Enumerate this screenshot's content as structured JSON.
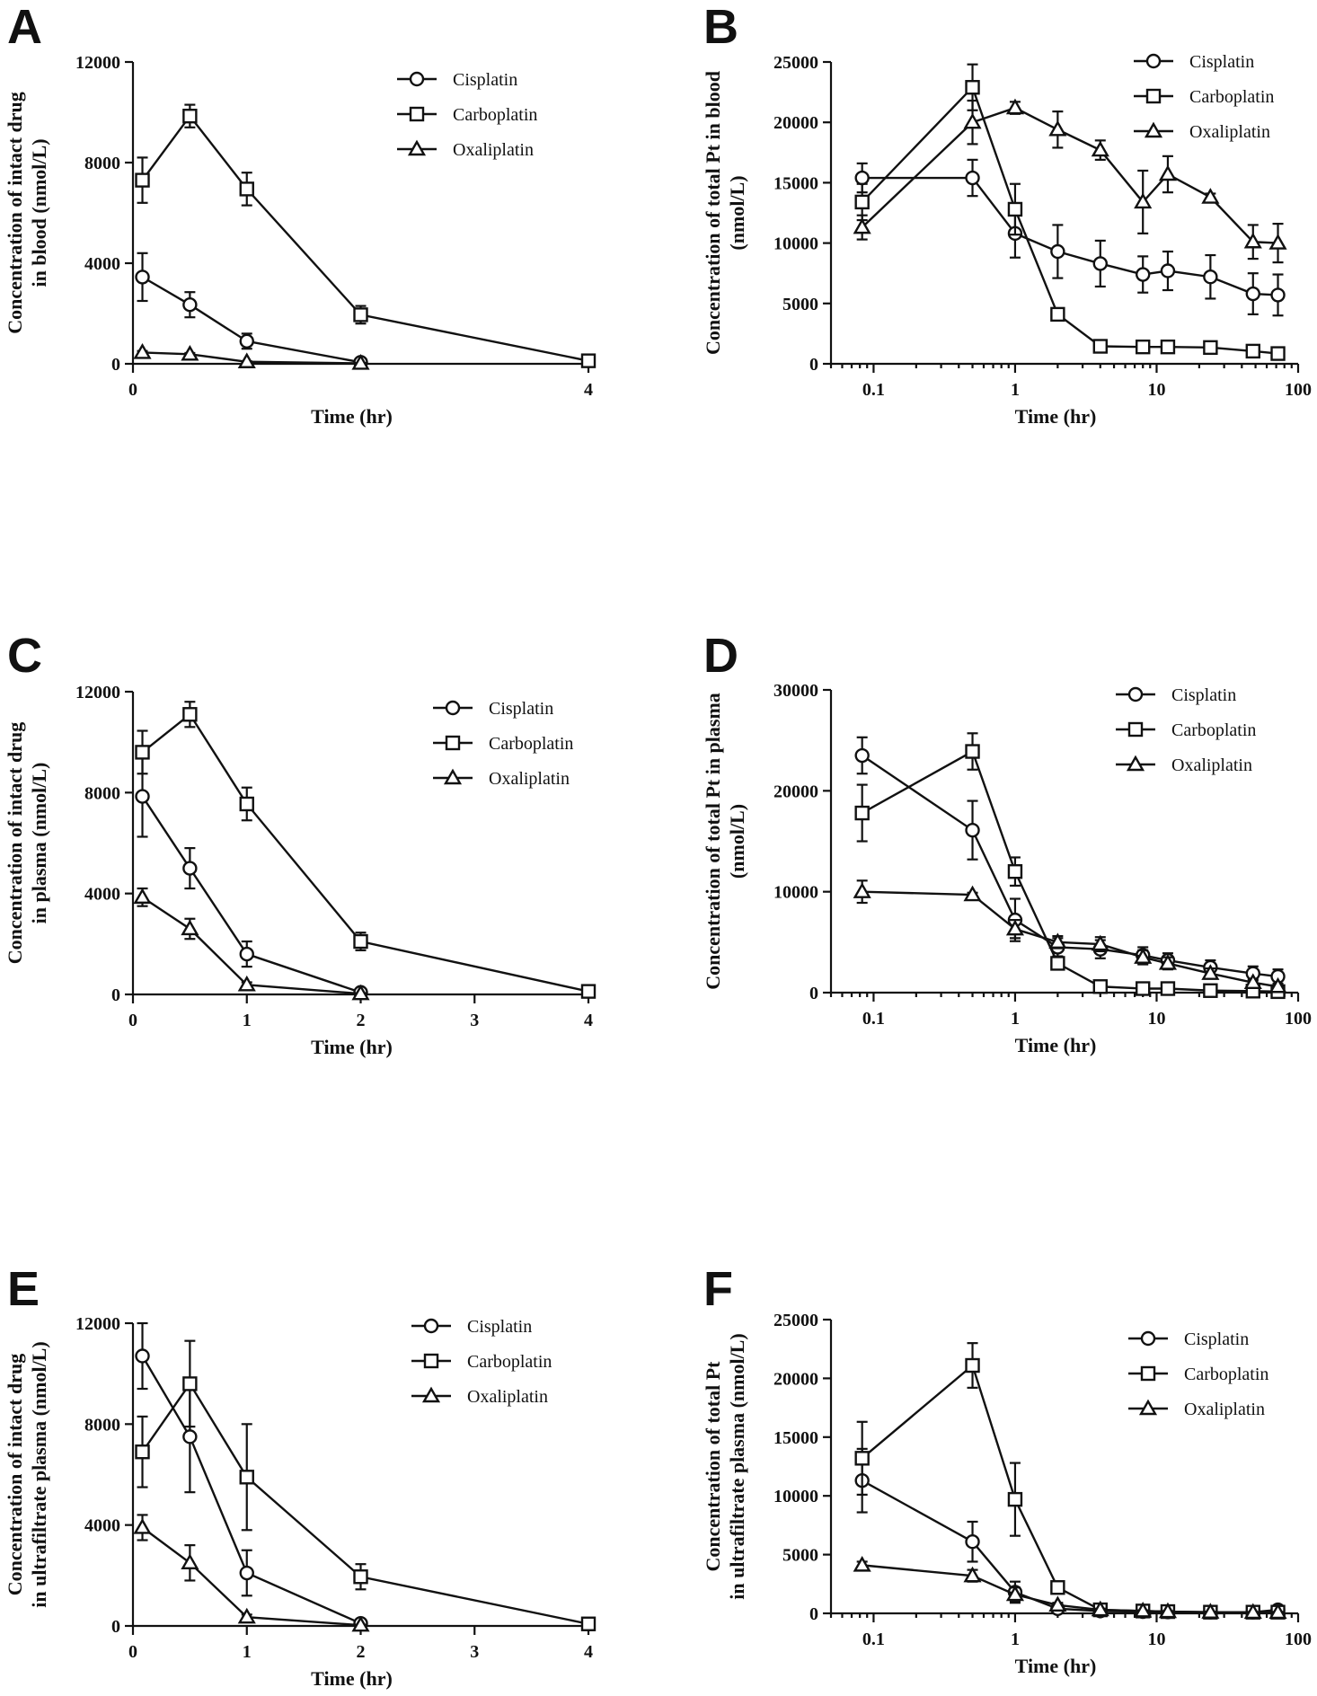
{
  "chart_data": [
    {
      "panel": "A",
      "type": "line",
      "xscale": "linear",
      "xlabel": "Time (hr)",
      "ylabel": [
        "Concentration of intact drug",
        "in blood (nmol/L)"
      ],
      "xlim": [
        0,
        4
      ],
      "ylim": [
        0,
        12000
      ],
      "xticks": [
        0,
        4
      ],
      "yticks": [
        0,
        4000,
        8000,
        12000
      ],
      "legend_position": "top-right",
      "series": [
        {
          "name": "Cisplatin",
          "marker": "circle",
          "x": [
            0.083,
            0.5,
            1,
            2
          ],
          "y": [
            3450,
            2350,
            900,
            60
          ],
          "err": [
            950,
            500,
            300,
            50
          ]
        },
        {
          "name": "Carboplatin",
          "marker": "square",
          "x": [
            0.083,
            0.5,
            1,
            2,
            4
          ],
          "y": [
            7300,
            9850,
            6950,
            1950,
            120
          ],
          "err": [
            900,
            450,
            650,
            350,
            80
          ]
        },
        {
          "name": "Oxaliplatin",
          "marker": "triangle",
          "x": [
            0.083,
            0.5,
            1,
            2
          ],
          "y": [
            450,
            380,
            80,
            20
          ],
          "err": [
            60,
            50,
            20,
            10
          ]
        }
      ]
    },
    {
      "panel": "B",
      "type": "line",
      "xscale": "log",
      "xlabel": "Time (hr)",
      "ylabel": [
        "Concentration of total Pt in blood",
        "(nmol/L)"
      ],
      "xlim": [
        0.05,
        100
      ],
      "ylim": [
        0,
        25000
      ],
      "xticks": [
        0.1,
        1,
        10,
        100
      ],
      "yticks": [
        0,
        5000,
        10000,
        15000,
        20000,
        25000
      ],
      "legend_position": "top-right",
      "series": [
        {
          "name": "Cisplatin",
          "marker": "circle",
          "x": [
            0.083,
            0.5,
            1,
            2,
            4,
            8,
            12,
            24,
            48,
            72
          ],
          "y": [
            15400,
            15400,
            10800,
            9300,
            8300,
            7400,
            7700,
            7200,
            5800,
            5700
          ],
          "err": [
            1200,
            1500,
            2000,
            2200,
            1900,
            1500,
            1600,
            1800,
            1700,
            1700
          ]
        },
        {
          "name": "Carboplatin",
          "marker": "square",
          "x": [
            0.083,
            0.5,
            1,
            2,
            4,
            8,
            12,
            24,
            48,
            72
          ],
          "y": [
            13400,
            22900,
            12800,
            4100,
            1450,
            1400,
            1400,
            1350,
            1050,
            850
          ],
          "err": [
            1500,
            1900,
            2100,
            500,
            150,
            120,
            120,
            120,
            100,
            100
          ]
        },
        {
          "name": "Oxaliplatin",
          "marker": "triangle",
          "x": [
            0.083,
            0.5,
            1,
            2,
            4,
            8,
            12,
            24,
            48,
            72
          ],
          "y": [
            11300,
            20000,
            21200,
            19400,
            17700,
            13400,
            15700,
            13800,
            10100,
            10000
          ],
          "err": [
            1000,
            1800,
            500,
            1500,
            800,
            2600,
            1500,
            300,
            1400,
            1600
          ]
        }
      ]
    },
    {
      "panel": "C",
      "type": "line",
      "xscale": "linear",
      "xlabel": "Time (hr)",
      "ylabel": [
        "Concentration of intact drug",
        "in plasma (nmol/L)"
      ],
      "xlim": [
        0,
        4
      ],
      "ylim": [
        0,
        12000
      ],
      "xticks": [
        0,
        1,
        2,
        3,
        4
      ],
      "yticks": [
        0,
        4000,
        8000,
        12000
      ],
      "legend_position": "top-right",
      "series": [
        {
          "name": "Cisplatin",
          "marker": "circle",
          "x": [
            0.083,
            0.5,
            1,
            2
          ],
          "y": [
            7850,
            5000,
            1600,
            80
          ],
          "err": [
            1600,
            800,
            500,
            80
          ]
        },
        {
          "name": "Carboplatin",
          "marker": "square",
          "x": [
            0.083,
            0.5,
            1,
            2,
            4
          ],
          "y": [
            9600,
            11100,
            7550,
            2100,
            120
          ],
          "err": [
            850,
            500,
            650,
            350,
            80
          ]
        },
        {
          "name": "Oxaliplatin",
          "marker": "triangle",
          "x": [
            0.083,
            0.5,
            1,
            2
          ],
          "y": [
            3850,
            2600,
            380,
            30
          ],
          "err": [
            350,
            400,
            100,
            20
          ]
        }
      ]
    },
    {
      "panel": "D",
      "type": "line",
      "xscale": "log",
      "xlabel": "Time (hr)",
      "ylabel": [
        "Concentration of total Pt in plasma",
        "(nmol/L)"
      ],
      "xlim": [
        0.05,
        100
      ],
      "ylim": [
        0,
        30000
      ],
      "xticks": [
        0.1,
        1,
        10,
        100
      ],
      "yticks": [
        0,
        10000,
        20000,
        30000
      ],
      "legend_position": "top-right",
      "series": [
        {
          "name": "Cisplatin",
          "marker": "circle",
          "x": [
            0.083,
            0.5,
            1,
            2,
            4,
            8,
            12,
            24,
            48,
            72
          ],
          "y": [
            23500,
            16100,
            7200,
            4500,
            4300,
            3700,
            3200,
            2500,
            1900,
            1600
          ],
          "err": [
            1800,
            2900,
            2100,
            900,
            900,
            800,
            700,
            700,
            700,
            700
          ]
        },
        {
          "name": "Carboplatin",
          "marker": "square",
          "x": [
            0.083,
            0.5,
            1,
            2,
            4,
            8,
            12,
            24,
            48,
            72
          ],
          "y": [
            17800,
            23900,
            12000,
            2900,
            600,
            400,
            400,
            200,
            150,
            100
          ],
          "err": [
            2800,
            1800,
            1400,
            400,
            100,
            80,
            80,
            60,
            60,
            50
          ]
        },
        {
          "name": "Oxaliplatin",
          "marker": "triangle",
          "x": [
            0.083,
            0.5,
            1,
            2,
            4,
            8,
            12,
            24,
            48,
            72
          ],
          "y": [
            10000,
            9700,
            6300,
            5000,
            4800,
            3500,
            2900,
            1900,
            1000,
            600
          ],
          "err": [
            1100,
            200,
            900,
            600,
            700,
            700,
            600,
            500,
            300,
            200
          ]
        }
      ]
    },
    {
      "panel": "E",
      "type": "line",
      "xscale": "linear",
      "xlabel": "Time (hr)",
      "ylabel": [
        "Concentration of intact drug",
        "in ultrafiltrate plasma (nmol/L)"
      ],
      "xlim": [
        0,
        4
      ],
      "ylim": [
        0,
        12000
      ],
      "xticks": [
        0,
        1,
        2,
        3,
        4
      ],
      "yticks": [
        0,
        4000,
        8000,
        12000
      ],
      "legend_position": "top-right",
      "series": [
        {
          "name": "Cisplatin",
          "marker": "circle",
          "x": [
            0.083,
            0.5,
            1,
            2
          ],
          "y": [
            10700,
            7500,
            2100,
            100
          ],
          "err": [
            1300,
            2200,
            900,
            80
          ]
        },
        {
          "name": "Carboplatin",
          "marker": "square",
          "x": [
            0.083,
            0.5,
            1,
            2,
            4
          ],
          "y": [
            6900,
            9600,
            5900,
            1950,
            80
          ],
          "err": [
            1400,
            1700,
            2100,
            500,
            60
          ]
        },
        {
          "name": "Oxaliplatin",
          "marker": "triangle",
          "x": [
            0.083,
            0.5,
            1,
            2
          ],
          "y": [
            3900,
            2500,
            350,
            30
          ],
          "err": [
            500,
            700,
            100,
            20
          ]
        }
      ]
    },
    {
      "panel": "F",
      "type": "line",
      "xscale": "log",
      "xlabel": "Time (hr)",
      "ylabel": [
        "Concentration of total Pt",
        "in ultrafiltrate plasma (nmol/L)"
      ],
      "xlim": [
        0.05,
        100
      ],
      "ylim": [
        0,
        25000
      ],
      "xticks": [
        0.1,
        1,
        10,
        100
      ],
      "yticks": [
        0,
        5000,
        10000,
        15000,
        20000,
        25000
      ],
      "legend_position": "top-right",
      "series": [
        {
          "name": "Cisplatin",
          "marker": "circle",
          "x": [
            0.083,
            0.5,
            1,
            2,
            4,
            8,
            12,
            24,
            48,
            72
          ],
          "y": [
            11300,
            6100,
            1800,
            400,
            200,
            150,
            120,
            100,
            100,
            300
          ],
          "err": [
            2700,
            1700,
            900,
            200,
            80,
            60,
            50,
            50,
            50,
            100
          ]
        },
        {
          "name": "Carboplatin",
          "marker": "square",
          "x": [
            0.083,
            0.5,
            1,
            2,
            4,
            8,
            12,
            24,
            48,
            72
          ],
          "y": [
            13200,
            21100,
            9700,
            2200,
            300,
            200,
            150,
            100,
            100,
            100
          ],
          "err": [
            3100,
            1900,
            3100,
            300,
            100,
            60,
            50,
            50,
            50,
            50
          ]
        },
        {
          "name": "Oxaliplatin",
          "marker": "triangle",
          "x": [
            0.083,
            0.5,
            1,
            2,
            4,
            8,
            12,
            24,
            48,
            72
          ],
          "y": [
            4100,
            3200,
            1600,
            700,
            300,
            200,
            150,
            100,
            80,
            80
          ],
          "err": [
            300,
            500,
            600,
            200,
            100,
            60,
            50,
            40,
            40,
            40
          ]
        }
      ]
    }
  ]
}
